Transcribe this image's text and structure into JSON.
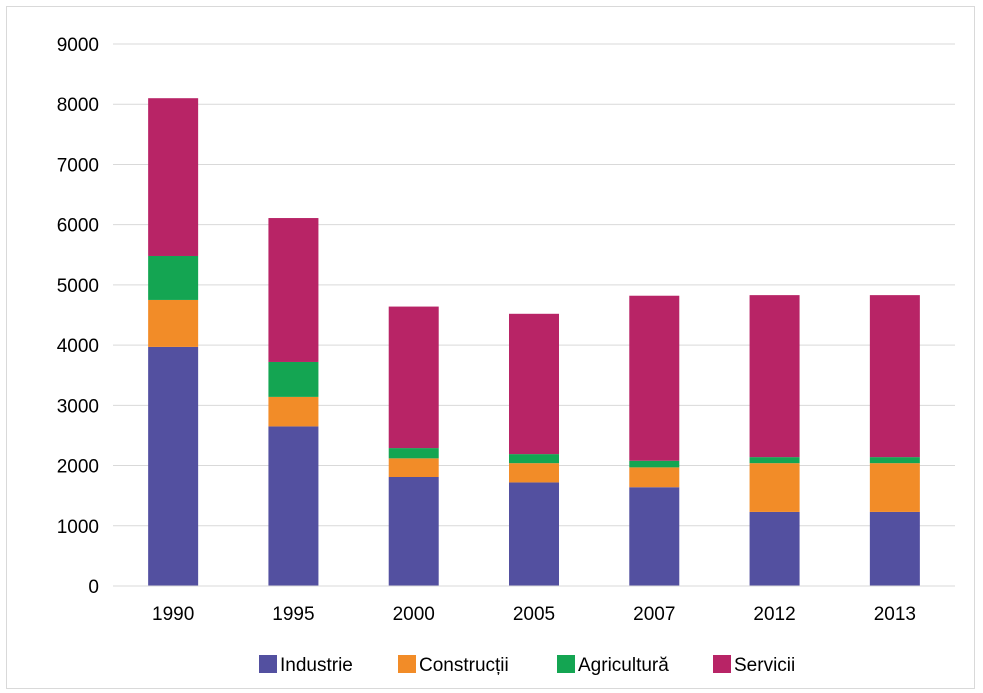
{
  "chart_data": {
    "type": "bar",
    "stacked": true,
    "categories": [
      "1990",
      "1995",
      "2000",
      "2005",
      "2007",
      "2012",
      "2013"
    ],
    "ylim": [
      0,
      9000
    ],
    "yticks": [
      0,
      1000,
      2000,
      3000,
      4000,
      5000,
      6000,
      7000,
      8000,
      9000
    ],
    "grid": true,
    "legend_position": "bottom",
    "series": [
      {
        "name": "Industrie",
        "color": "#5350a0",
        "values": [
          3970,
          2650,
          1810,
          1720,
          1640,
          1230,
          1230
        ]
      },
      {
        "name": "Construcții",
        "color": "#f28c28",
        "values": [
          780,
          490,
          310,
          320,
          330,
          810,
          810
        ]
      },
      {
        "name": "Agricultură",
        "color": "#14a552",
        "values": [
          730,
          580,
          170,
          150,
          110,
          100,
          100
        ]
      },
      {
        "name": "Servicii",
        "color": "#b82466",
        "values": [
          2620,
          2390,
          2350,
          2330,
          2740,
          2690,
          2690
        ]
      }
    ]
  }
}
